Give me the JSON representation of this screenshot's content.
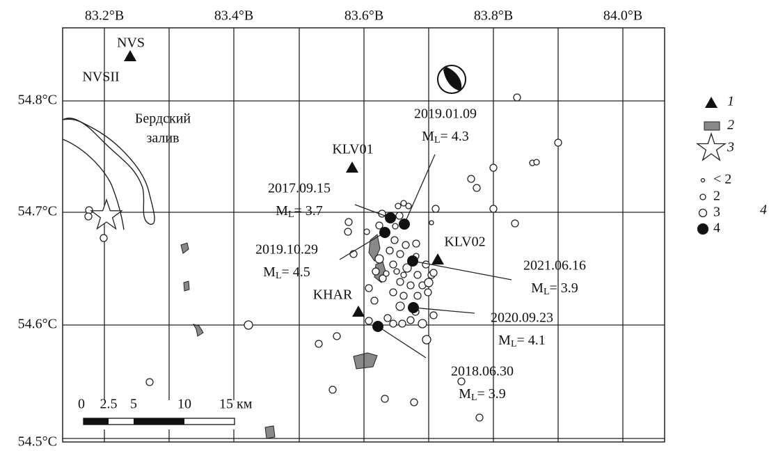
{
  "map": {
    "lon_labels": [
      "83.2°В",
      "83.4°В",
      "83.6°В",
      "83.8°В",
      "84.0°В"
    ],
    "lat_labels": [
      "54.8°С",
      "54.7°С",
      "54.6°С",
      "54.5°С"
    ],
    "place": [
      "Бердский",
      "залив"
    ],
    "stations": [
      "NVS",
      "NVSII",
      "KLV01",
      "KLV02",
      "KHAR"
    ],
    "magnitude_symbol": "M",
    "magnitude_subscript": "L",
    "events": [
      {
        "date": "2019.01.09",
        "magnitude": "= 4.3"
      },
      {
        "date": "2017.09.15",
        "magnitude": "= 3.7"
      },
      {
        "date": "2019.10.29",
        "magnitude": "= 4.5"
      },
      {
        "date": "2021.06.16",
        "magnitude": "= 3.9"
      },
      {
        "date": "2020.09.23",
        "magnitude": "= 4.1"
      },
      {
        "date": "2018.06.30",
        "magnitude": "= 3.9"
      }
    ],
    "scale": [
      "0",
      "2.5",
      "5",
      "10",
      "15 км"
    ],
    "legend": {
      "items": [
        "1",
        "2",
        "3"
      ],
      "sizes": [
        "< 2",
        "2",
        "3",
        "4"
      ],
      "group": "4"
    }
  }
}
